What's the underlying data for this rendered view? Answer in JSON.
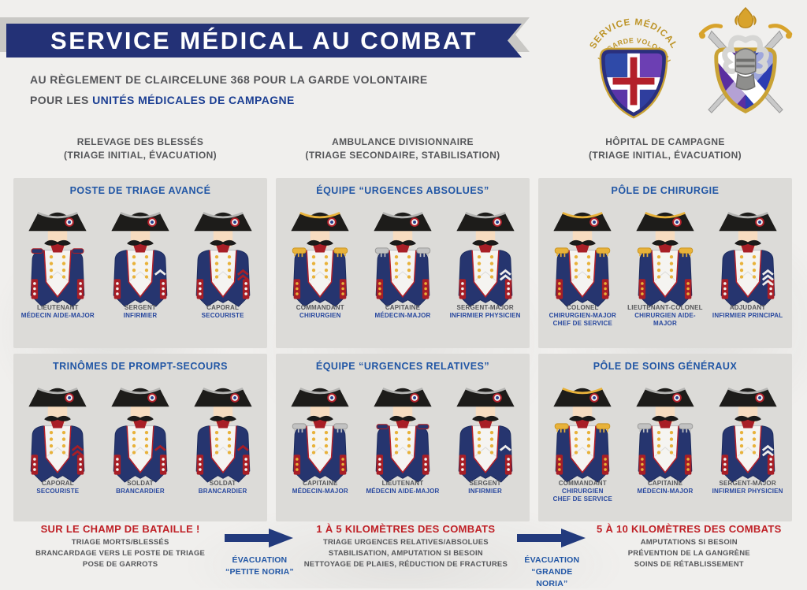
{
  "header": {
    "banner_title": "SERVICE MÉDICAL AU COMBAT",
    "subtitle_line1": "AU RÈGLEMENT DE CLAIRCELUNE 368 POUR LA GARDE VOLONTAIRE",
    "subtitle_line2_prefix": "POUR LES ",
    "subtitle_line2_accent": "UNITÉS MÉDICALES DE CAMPAGNE",
    "emblem": {
      "arc1": "SERVICE MÉDICAL",
      "arc2": "DE LA GARDE VOLONTAIRE"
    }
  },
  "colors": {
    "banner_navy": "#233176",
    "accent_blue": "#2156a5",
    "deep_blue": "#1c3f93",
    "alert_red": "#bf2026",
    "text_gray": "#56575a",
    "panel_gray": "#dcdbd8",
    "uniform_navy": "#26356f",
    "uniform_red": "#a81e26",
    "gold": "#e8b23a",
    "silver": "#bcbcbc"
  },
  "columns": [
    {
      "title_line1": "RELEVAGE DES BLESSÉS",
      "title_line2": "(TRIAGE INITIAL, ÉVACUATION)",
      "sections": [
        {
          "title": "POSTE DE TRIAGE AVANCÉ",
          "figures": [
            {
              "rank": "LIEUTENANT",
              "specialty": "MÉDECIN AIDE-MAJOR",
              "trim": "silver",
              "epaulettes": "navy",
              "chevrons": 0,
              "chevron_color": ""
            },
            {
              "rank": "SERGENT",
              "specialty": "INFIRMIER",
              "trim": "silver",
              "epaulettes": "none",
              "chevrons": 1,
              "chevron_color": "white"
            },
            {
              "rank": "CAPORAL",
              "specialty": "SECOURISTE",
              "trim": "silver",
              "epaulettes": "none",
              "chevrons": 2,
              "chevron_color": "red"
            }
          ]
        },
        {
          "title": "TRINÔMES DE PROMPT-SECOURS",
          "figures": [
            {
              "rank": "CAPORAL",
              "specialty": "SECOURISTE",
              "trim": "silver",
              "epaulettes": "none",
              "chevrons": 2,
              "chevron_color": "red"
            },
            {
              "rank": "SOLDAT",
              "specialty": "BRANCARDIER",
              "trim": "silver",
              "epaulettes": "none",
              "chevrons": 1,
              "chevron_color": "red"
            },
            {
              "rank": "SOLDAT",
              "specialty": "BRANCARDIER",
              "trim": "silver",
              "epaulettes": "none",
              "chevrons": 1,
              "chevron_color": "red"
            }
          ]
        }
      ]
    },
    {
      "title_line1": "AMBULANCE DIVISIONNAIRE",
      "title_line2": "(TRIAGE SECONDAIRE, STABILISATION)",
      "sections": [
        {
          "title": "ÉQUIPE “URGENCES ABSOLUES”",
          "figures": [
            {
              "rank": "COMMANDANT",
              "specialty": "CHIRURGIEN",
              "trim": "gold",
              "epaulettes": "gold",
              "chevrons": 0,
              "chevron_color": ""
            },
            {
              "rank": "CAPITAINE",
              "specialty": "MÉDECIN-MAJOR",
              "trim": "silver",
              "epaulettes": "silver",
              "chevrons": 0,
              "chevron_color": ""
            },
            {
              "rank": "SERGENT-MAJOR",
              "specialty": "INFIRMIER PHYSICIEN",
              "trim": "silver",
              "epaulettes": "none",
              "chevrons": 2,
              "chevron_color": "white"
            }
          ]
        },
        {
          "title": "ÉQUIPE “URGENCES RELATIVES”",
          "figures": [
            {
              "rank": "CAPITAINE",
              "specialty": "MÉDECIN-MAJOR",
              "trim": "silver",
              "epaulettes": "silver",
              "chevrons": 0,
              "chevron_color": ""
            },
            {
              "rank": "LIEUTENANT",
              "specialty": "MÉDECIN AIDE-MAJOR",
              "trim": "silver",
              "epaulettes": "navy",
              "chevrons": 0,
              "chevron_color": ""
            },
            {
              "rank": "SERGENT",
              "specialty": "INFIRMIER",
              "trim": "silver",
              "epaulettes": "none",
              "chevrons": 1,
              "chevron_color": "white"
            }
          ]
        }
      ]
    },
    {
      "title_line1": "HÔPITAL DE CAMPAGNE",
      "title_line2": "(TRIAGE INITIAL, ÉVACUATION)",
      "sections": [
        {
          "title": "PÔLE DE CHIRURGIE",
          "figures": [
            {
              "rank": "COLONEL",
              "specialty": "CHIRURGIEN-MAJOR",
              "extra": "CHEF DE SERVICE",
              "trim": "gold",
              "epaulettes": "gold",
              "chevrons": 0,
              "chevron_color": ""
            },
            {
              "rank": "LIEUTENANT-COLONEL",
              "specialty": "CHIRURGIEN AIDE-MAJOR",
              "trim": "gold",
              "epaulettes": "gold",
              "chevrons": 0,
              "chevron_color": ""
            },
            {
              "rank": "ADJUDANT",
              "specialty": "INFIRMIER PRINCIPAL",
              "trim": "silver",
              "epaulettes": "none",
              "chevrons": 3,
              "chevron_color": "white"
            }
          ]
        },
        {
          "title": "PÔLE DE SOINS GÉNÉRAUX",
          "figures": [
            {
              "rank": "COMMANDANT",
              "specialty": "CHIRURGIEN",
              "extra": "CHEF DE SERVICE",
              "trim": "gold",
              "epaulettes": "gold",
              "chevrons": 0,
              "chevron_color": ""
            },
            {
              "rank": "CAPITAINE",
              "specialty": "MÉDECIN-MAJOR",
              "trim": "silver",
              "epaulettes": "silver",
              "chevrons": 0,
              "chevron_color": ""
            },
            {
              "rank": "SERGENT-MAJOR",
              "specialty": "INFIRMIER PHYSICIEN",
              "trim": "silver",
              "epaulettes": "none",
              "chevrons": 2,
              "chevron_color": "white"
            }
          ]
        }
      ]
    }
  ],
  "footer": {
    "stages": [
      {
        "title": "SUR LE CHAMP DE BATAILLE !",
        "lines": [
          "TRIAGE MORTS/BLESSÉS",
          "BRANCARDAGE VERS LE POSTE DE TRIAGE",
          "POSE DE GARROTS"
        ]
      },
      {
        "title": "1 À 5 KILOMÈTRES DES COMBATS",
        "lines": [
          "TRIAGE URGENCES RELATIVES/ABSOLUES",
          "STABILISATION, AMPUTATION SI BESOIN",
          "NETTOYAGE DE PLAIES, RÉDUCTION DE FRACTURES"
        ]
      },
      {
        "title": "5 À 10 KILOMÈTRES DES COMBATS",
        "lines": [
          "AMPUTATIONS SI BESOIN",
          "PRÉVENTION DE LA GANGRÈNE",
          "SOINS DE RÉTABLISSEMENT"
        ]
      }
    ],
    "evacuations": [
      {
        "line1": "ÉVACUATION",
        "line2": "“PETITE NORIA”"
      },
      {
        "line1": "ÉVACUATION",
        "line2": "“GRANDE NORIA”"
      }
    ]
  }
}
